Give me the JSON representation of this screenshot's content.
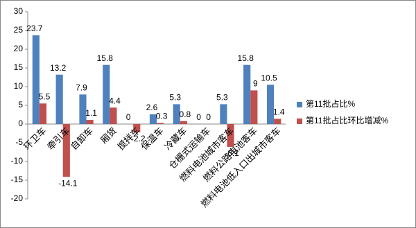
{
  "chart_data": {
    "type": "bar",
    "categories": [
      "环卫车",
      "牵引车",
      "自卸车",
      "厢货",
      "搅拌车",
      "保温车",
      "冷藏车",
      "仓栅式运输车",
      "燃料电池城市客车",
      "燃料公路电池客车",
      "燃料电池低入口出城市客车"
    ],
    "series": [
      {
        "name": "第11批占比%",
        "color": "#4f81bd",
        "values": [
          23.7,
          13.2,
          7.9,
          15.8,
          0,
          2.6,
          5.3,
          0,
          5.3,
          15.8,
          10.5
        ]
      },
      {
        "name": "第11批占比环比增减%",
        "color": "#c0504d",
        "values": [
          5.5,
          -14.1,
          1.1,
          4.4,
          -2.2,
          0.3,
          0.8,
          0,
          -6.1,
          9,
          1.4
        ]
      }
    ],
    "ylim": [
      -20,
      30
    ],
    "yticks": [
      -20,
      -15,
      -10,
      -5,
      0,
      5,
      10,
      15,
      20,
      25,
      30
    ],
    "grid": false,
    "legend": "right"
  }
}
